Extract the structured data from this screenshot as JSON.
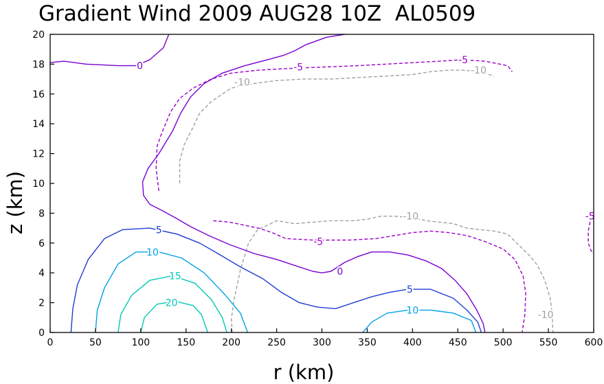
{
  "chart_data": {
    "type": "contour",
    "title": "Gradient Wind 2009 AUG28 10Z  AL0509",
    "xlabel": "r (km)",
    "ylabel": "z (km)",
    "xlim": [
      0,
      600
    ],
    "ylim": [
      0,
      20
    ],
    "xticks": [
      "0",
      "50",
      "100",
      "150",
      "200",
      "250",
      "300",
      "350",
      "400",
      "450",
      "500",
      "550",
      "600"
    ],
    "yticks": [
      "0",
      "2",
      "4",
      "6",
      "8",
      "10",
      "12",
      "14",
      "16",
      "18",
      "20"
    ],
    "colors": {
      "neg10": "#a0a0a0",
      "neg5": "#9b00c8",
      "zero": "#7800d2",
      "pos5": "#1e3cd2",
      "pos10": "#00a0e6",
      "pos15": "#00c8b4",
      "pos20": "#00c8b4"
    },
    "contours": [
      {
        "level": "-10",
        "color": "neg10",
        "dashed": true,
        "points": [
          [
            201,
            0
          ],
          [
            200,
            0.9
          ],
          [
            203,
            2.2
          ],
          [
            210,
            4.2
          ],
          [
            219,
            6
          ],
          [
            229,
            6.9
          ],
          [
            240,
            7.2
          ],
          [
            250,
            7.5
          ],
          [
            270,
            7.3
          ],
          [
            290,
            7.4
          ],
          [
            310,
            7.5
          ],
          [
            335,
            7.5
          ],
          [
            350,
            7.6
          ],
          [
            365,
            7.8
          ],
          [
            380,
            7.8
          ],
          [
            400,
            7.7
          ],
          [
            415,
            7.5
          ],
          [
            430,
            7.4
          ],
          [
            445,
            7.3
          ],
          [
            460,
            7
          ],
          [
            475,
            6.9
          ],
          [
            490,
            6.8
          ],
          [
            505,
            6.6
          ],
          [
            520,
            5.7
          ],
          [
            530,
            5.1
          ],
          [
            538,
            4.5
          ],
          [
            546,
            3.5
          ],
          [
            552,
            2.3
          ],
          [
            554,
            1.3
          ],
          [
            555,
            0
          ]
        ],
        "labels": [
          {
            "t": "-10",
            "x": 398,
            "y": 7.8
          },
          {
            "t": "-10",
            "x": 547,
            "y": 1.2
          }
        ]
      },
      {
        "level": "-10",
        "color": "neg10",
        "dashed": true,
        "points": [
          [
            143,
            10.0
          ],
          [
            143,
            11.5
          ],
          [
            148,
            12.6
          ],
          [
            158,
            13.8
          ],
          [
            165,
            14.7
          ],
          [
            178,
            15.5
          ],
          [
            200,
            16.4
          ],
          [
            225,
            16.7
          ],
          [
            250,
            16.9
          ],
          [
            280,
            17
          ],
          [
            310,
            17
          ],
          [
            340,
            17.1
          ],
          [
            370,
            17.2
          ],
          [
            400,
            17.3
          ],
          [
            420,
            17.5
          ],
          [
            440,
            17.6
          ],
          [
            455,
            17.6
          ],
          [
            475,
            17.5
          ],
          [
            490,
            17.2
          ]
        ],
        "labels": [
          {
            "t": "-10",
            "x": 212,
            "y": 16.8
          },
          {
            "t": "-10",
            "x": 473,
            "y": 17.6
          }
        ]
      },
      {
        "level": "-5",
        "color": "neg5",
        "dashed": true,
        "points": [
          [
            120,
            9.5
          ],
          [
            117,
            11
          ],
          [
            118,
            12.5
          ],
          [
            124,
            13.5
          ],
          [
            133,
            14.8
          ],
          [
            143,
            15.7
          ],
          [
            158,
            16.4
          ],
          [
            178,
            17
          ],
          [
            200,
            17.4
          ],
          [
            230,
            17.6
          ],
          [
            260,
            17.7
          ],
          [
            300,
            17.8
          ],
          [
            340,
            17.9
          ],
          [
            370,
            18.0
          ],
          [
            400,
            18.1
          ],
          [
            430,
            18.2
          ],
          [
            455,
            18.3
          ],
          [
            480,
            18.2
          ],
          [
            505,
            17.9
          ],
          [
            510,
            17.5
          ]
        ],
        "labels": [
          {
            "t": "-5",
            "x": 274,
            "y": 17.8
          },
          {
            "t": "-5",
            "x": 456,
            "y": 18.3
          }
        ]
      },
      {
        "level": "-5",
        "color": "neg5",
        "dashed": true,
        "points": [
          [
            180,
            7.5
          ],
          [
            198,
            7.4
          ],
          [
            230,
            7
          ],
          [
            245,
            6.7
          ],
          [
            260,
            6.3
          ],
          [
            290,
            6.2
          ],
          [
            330,
            6.2
          ],
          [
            360,
            6.3
          ],
          [
            380,
            6.5
          ],
          [
            400,
            6.7
          ],
          [
            420,
            6.8
          ],
          [
            440,
            6.7
          ],
          [
            460,
            6.5
          ],
          [
            480,
            6.1
          ],
          [
            500,
            5.6
          ],
          [
            513,
            4.9
          ],
          [
            522,
            3.8
          ],
          [
            525,
            2.6
          ],
          [
            524,
            1.2
          ],
          [
            521,
            0
          ]
        ],
        "labels": [
          {
            "t": "-5",
            "x": 296,
            "y": 6.1
          }
        ]
      },
      {
        "level": "-5",
        "color": "neg5",
        "dashed": true,
        "points": [
          [
            600,
            7.7
          ],
          [
            596,
            7.4
          ],
          [
            594,
            6.8
          ],
          [
            594,
            6.0
          ],
          [
            597,
            5.5
          ],
          [
            600,
            5.3
          ]
        ],
        "labels": [
          {
            "t": "-5",
            "x": 596,
            "y": 7.8
          }
        ]
      },
      {
        "level": "0",
        "color": "zero",
        "dashed": false,
        "points": [
          [
            0,
            18.1
          ],
          [
            15,
            18.2
          ],
          [
            40,
            18.0
          ],
          [
            75,
            17.9
          ],
          [
            95,
            17.9
          ],
          [
            110,
            18.3
          ],
          [
            125,
            19.1
          ],
          [
            131,
            20
          ]
        ],
        "labels": [
          {
            "t": "0",
            "x": 99,
            "y": 17.9
          }
        ]
      },
      {
        "level": "0",
        "color": "zero",
        "dashed": false,
        "points": [
          [
            325,
            20
          ],
          [
            305,
            19.8
          ],
          [
            282,
            19.3
          ],
          [
            270,
            18.9
          ],
          [
            258,
            18.6
          ],
          [
            240,
            18.3
          ],
          [
            215,
            17.9
          ],
          [
            190,
            17.4
          ],
          [
            170,
            16.7
          ],
          [
            155,
            15.8
          ],
          [
            144,
            14.7
          ],
          [
            135,
            13.5
          ],
          [
            120,
            12
          ],
          [
            108,
            11
          ],
          [
            102,
            10.1
          ],
          [
            103,
            9.2
          ],
          [
            110,
            8.6
          ],
          [
            123,
            8.2
          ],
          [
            138,
            7.7
          ],
          [
            155,
            7.1
          ],
          [
            175,
            6.5
          ],
          [
            198,
            5.9
          ],
          [
            225,
            5.3
          ],
          [
            250,
            4.9
          ],
          [
            270,
            4.5
          ],
          [
            290,
            4.1
          ],
          [
            300,
            4.0
          ],
          [
            310,
            4.1
          ],
          [
            325,
            4.7
          ],
          [
            340,
            5.1
          ],
          [
            355,
            5.4
          ],
          [
            375,
            5.4
          ],
          [
            395,
            5.2
          ],
          [
            415,
            4.8
          ],
          [
            432,
            4.3
          ],
          [
            447,
            3.5
          ],
          [
            460,
            2.6
          ],
          [
            471,
            1.5
          ],
          [
            478,
            0.6
          ],
          [
            480,
            0
          ]
        ],
        "labels": [
          {
            "t": "0",
            "x": 320,
            "y": 4.1
          }
        ]
      },
      {
        "level": "5",
        "color": "pos5",
        "dashed": false,
        "points": [
          [
            23,
            0
          ],
          [
            25,
            1.6
          ],
          [
            30,
            3.2
          ],
          [
            42,
            4.9
          ],
          [
            60,
            6.3
          ],
          [
            80,
            6.9
          ],
          [
            110,
            7.0
          ],
          [
            140,
            6.6
          ],
          [
            165,
            6.0
          ],
          [
            185,
            5.3
          ],
          [
            210,
            4.4
          ],
          [
            235,
            3.6
          ],
          [
            255,
            2.7
          ],
          [
            275,
            2.0
          ],
          [
            295,
            1.7
          ],
          [
            315,
            1.6
          ],
          [
            335,
            2.0
          ],
          [
            355,
            2.4
          ],
          [
            375,
            2.7
          ],
          [
            395,
            2.9
          ],
          [
            420,
            2.9
          ],
          [
            445,
            2.3
          ],
          [
            460,
            1.5
          ],
          [
            472,
            0.7
          ],
          [
            476,
            0
          ]
        ],
        "labels": [
          {
            "t": "5",
            "x": 120,
            "y": 6.9
          },
          {
            "t": "5",
            "x": 397,
            "y": 2.9
          }
        ]
      },
      {
        "level": "10",
        "color": "pos10",
        "dashed": false,
        "points": [
          [
            50,
            0
          ],
          [
            52,
            1.5
          ],
          [
            60,
            3
          ],
          [
            75,
            4.6
          ],
          [
            95,
            5.4
          ],
          [
            120,
            5.4
          ],
          [
            145,
            5.0
          ],
          [
            170,
            4.0
          ],
          [
            192,
            2.6
          ],
          [
            210,
            1.3
          ],
          [
            218,
            0
          ]
        ],
        "labels": [
          {
            "t": "10",
            "x": 113,
            "y": 5.4
          }
        ]
      },
      {
        "level": "10",
        "color": "pos10",
        "dashed": false,
        "points": [
          [
            345,
            0
          ],
          [
            355,
            0.7
          ],
          [
            372,
            1.3
          ],
          [
            395,
            1.5
          ],
          [
            420,
            1.5
          ],
          [
            445,
            1.3
          ],
          [
            465,
            0.8
          ],
          [
            470,
            0
          ]
        ],
        "labels": [
          {
            "t": "10",
            "x": 400,
            "y": 1.5
          }
        ]
      },
      {
        "level": "15",
        "color": "pos15",
        "dashed": false,
        "points": [
          [
            75,
            0
          ],
          [
            78,
            1.2
          ],
          [
            90,
            2.5
          ],
          [
            110,
            3.5
          ],
          [
            135,
            3.8
          ],
          [
            160,
            3.3
          ],
          [
            178,
            2.2
          ],
          [
            190,
            1.0
          ],
          [
            195,
            0
          ]
        ],
        "labels": [
          {
            "t": "15",
            "x": 138,
            "y": 3.8
          }
        ]
      },
      {
        "level": "20",
        "color": "pos20",
        "dashed": false,
        "points": [
          [
            100,
            0
          ],
          [
            104,
            1
          ],
          [
            118,
            1.9
          ],
          [
            138,
            2.1
          ],
          [
            158,
            1.8
          ],
          [
            167,
            1.2
          ],
          [
            174,
            0
          ]
        ],
        "labels": [
          {
            "t": "20",
            "x": 134,
            "y": 2.0
          }
        ]
      }
    ]
  }
}
